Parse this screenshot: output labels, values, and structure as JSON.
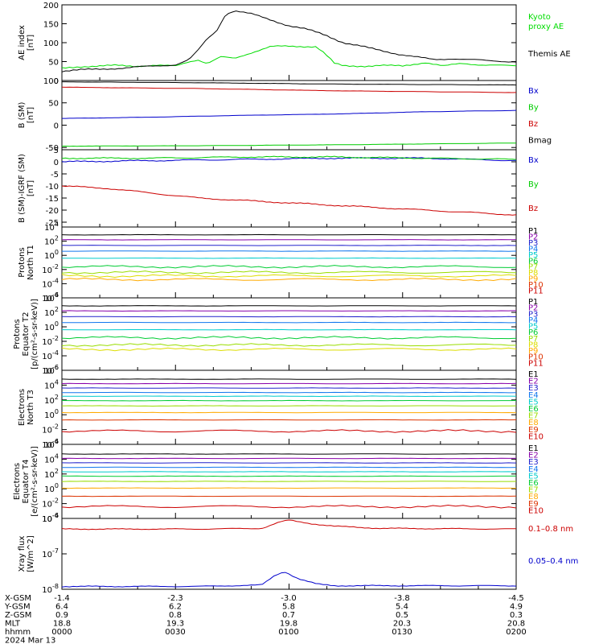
{
  "chart_data": {
    "type": "line",
    "date": "2024 Mar 13",
    "time_range_hhmm": [
      "0000",
      "0200"
    ],
    "panels": [
      {
        "id": "ae",
        "ylabel": "AE index [nT]",
        "ylim": [
          0,
          200
        ],
        "yticks": [
          "0",
          "50",
          "100",
          "150",
          "200"
        ],
        "ytick_values": [
          0,
          50,
          100,
          150,
          200
        ],
        "series": [
          {
            "name": "Kyoto proxy AE",
            "color": "#00dd00",
            "points": [
              [
                0,
                32
              ],
              [
                4,
                37
              ],
              [
                8,
                38
              ],
              [
                12,
                40
              ],
              [
                16,
                38
              ],
              [
                20,
                40
              ],
              [
                25,
                38
              ],
              [
                28,
                50
              ],
              [
                30,
                55
              ],
              [
                32,
                45
              ],
              [
                35,
                62
              ],
              [
                38,
                58
              ],
              [
                42,
                75
              ],
              [
                46,
                90
              ],
              [
                52,
                90
              ],
              [
                56,
                90
              ],
              [
                58,
                70
              ],
              [
                60,
                45
              ],
              [
                62,
                38
              ],
              [
                66,
                38
              ],
              [
                70,
                40
              ],
              [
                75,
                38
              ],
              [
                80,
                48
              ],
              [
                84,
                38
              ],
              [
                88,
                45
              ],
              [
                92,
                42
              ],
              [
                96,
                40
              ],
              [
                100,
                38
              ]
            ]
          },
          {
            "name": "Themis AE",
            "color": "#000000",
            "points": [
              [
                0,
                25
              ],
              [
                4,
                28
              ],
              [
                8,
                30
              ],
              [
                12,
                32
              ],
              [
                16,
                35
              ],
              [
                20,
                38
              ],
              [
                25,
                42
              ],
              [
                28,
                55
              ],
              [
                30,
                80
              ],
              [
                32,
                110
              ],
              [
                34,
                130
              ],
              [
                36,
                175
              ],
              [
                38,
                185
              ],
              [
                42,
                175
              ],
              [
                46,
                160
              ],
              [
                50,
                145
              ],
              [
                54,
                135
              ],
              [
                58,
                120
              ],
              [
                62,
                100
              ],
              [
                66,
                90
              ],
              [
                70,
                80
              ],
              [
                74,
                70
              ],
              [
                78,
                62
              ],
              [
                82,
                55
              ],
              [
                86,
                58
              ],
              [
                90,
                55
              ],
              [
                94,
                52
              ],
              [
                100,
                50
              ]
            ]
          }
        ]
      },
      {
        "id": "b_sm",
        "ylabel": "B (SM) [nT]",
        "ylim": [
          -55,
          100
        ],
        "yticks": [
          "-50",
          "0",
          "50",
          "100"
        ],
        "ytick_values": [
          -50,
          0,
          50,
          100
        ],
        "series": [
          {
            "name": "Bx",
            "color": "#0000cc",
            "points": [
              [
                0,
                15
              ],
              [
                20,
                18
              ],
              [
                40,
                22
              ],
              [
                60,
                25
              ],
              [
                80,
                30
              ],
              [
                100,
                33
              ]
            ]
          },
          {
            "name": "By",
            "color": "#00cc00",
            "points": [
              [
                0,
                -47
              ],
              [
                30,
                -46
              ],
              [
                60,
                -44
              ],
              [
                100,
                -40
              ]
            ]
          },
          {
            "name": "Bz",
            "color": "#cc0000",
            "points": [
              [
                0,
                85
              ],
              [
                30,
                82
              ],
              [
                60,
                77
              ],
              [
                80,
                75
              ],
              [
                100,
                73
              ]
            ]
          },
          {
            "name": "Bmag",
            "color": "#000000",
            "points": [
              [
                0,
                97
              ],
              [
                30,
                95
              ],
              [
                60,
                92
              ],
              [
                100,
                90
              ]
            ]
          }
        ]
      },
      {
        "id": "b_igrf",
        "ylabel": "B (SM)-IGRF (SM) [nT]",
        "ylim": [
          -27,
          5
        ],
        "yticks": [
          "-25",
          "-20",
          "-15",
          "-10",
          "-5",
          "0",
          "5"
        ],
        "ytick_values": [
          -25,
          -20,
          -15,
          -10,
          -5,
          0,
          5
        ],
        "series": [
          {
            "name": "Bx",
            "color": "#0000cc",
            "points": [
              [
                0,
                0
              ],
              [
                20,
                0.5
              ],
              [
                40,
                1
              ],
              [
                60,
                1.5
              ],
              [
                80,
                1.5
              ],
              [
                100,
                0.5
              ]
            ]
          },
          {
            "name": "By",
            "color": "#00cc00",
            "points": [
              [
                0,
                1.5
              ],
              [
                20,
                1.5
              ],
              [
                40,
                2
              ],
              [
                60,
                2
              ],
              [
                80,
                1.5
              ],
              [
                100,
                1
              ]
            ]
          },
          {
            "name": "Bz",
            "color": "#cc0000",
            "points": [
              [
                0,
                -10
              ],
              [
                10,
                -11
              ],
              [
                20,
                -13
              ],
              [
                30,
                -15
              ],
              [
                40,
                -16
              ],
              [
                50,
                -17
              ],
              [
                60,
                -18
              ],
              [
                70,
                -19
              ],
              [
                80,
                -20
              ],
              [
                90,
                -21
              ],
              [
                100,
                -22
              ]
            ]
          }
        ]
      },
      {
        "id": "protons_north",
        "ylabel": "Protons North T1",
        "log": true,
        "ylim_exp": [
          -6,
          4
        ],
        "yticks_exp": [
          -6,
          -4,
          -2,
          0,
          2,
          4
        ],
        "series": [
          {
            "name": "P1",
            "color": "#000000",
            "value_exp": 2.9
          },
          {
            "name": "P2",
            "color": "#8800aa",
            "value_exp": 2.2
          },
          {
            "name": "P3",
            "color": "#2222cc",
            "value_exp": 1.4
          },
          {
            "name": "P4",
            "color": "#1177ee",
            "value_exp": 0.6
          },
          {
            "name": "P5",
            "color": "#00cccc",
            "value_exp": -0.4
          },
          {
            "name": "P6",
            "color": "#00cc33",
            "value_exp": -1.6
          },
          {
            "name": "P7",
            "color": "#99dd00",
            "value_exp": -2.4
          },
          {
            "name": "P8",
            "color": "#dddd00",
            "value_exp": -2.9
          },
          {
            "name": "P9",
            "color": "#ffaa00",
            "value_exp": -3.4
          }
        ],
        "legend": [
          "P1",
          "P2",
          "P3",
          "P4",
          "P5",
          "P6",
          "P7",
          "P8",
          "P9",
          "P10",
          "P11"
        ]
      },
      {
        "id": "protons_equator",
        "ylabel": "Protons Equator T2 [p/(cm²-s-sr-keV)]",
        "log": true,
        "ylim_exp": [
          -6,
          4
        ],
        "yticks_exp": [
          -6,
          -4,
          -2,
          0,
          2,
          4
        ],
        "series": [
          {
            "name": "P1",
            "color": "#000000",
            "value_exp": 2.9
          },
          {
            "name": "P2",
            "color": "#8800aa",
            "value_exp": 2.2
          },
          {
            "name": "P3",
            "color": "#2222cc",
            "value_exp": 1.4
          },
          {
            "name": "P4",
            "color": "#1177ee",
            "value_exp": 0.6
          },
          {
            "name": "P5",
            "color": "#00cccc",
            "value_exp": -0.4
          },
          {
            "name": "P6",
            "color": "#00cc33",
            "value_exp": -1.5
          },
          {
            "name": "P7",
            "color": "#99dd00",
            "value_exp": -2.5
          },
          {
            "name": "P8",
            "color": "#dddd00",
            "value_exp": -3.1
          }
        ],
        "legend": [
          "P1",
          "P2",
          "P3",
          "P4",
          "P5",
          "P6",
          "P7",
          "P8",
          "P9",
          "P10",
          "P11"
        ]
      },
      {
        "id": "electrons_north",
        "ylabel": "Electrons North T3",
        "log": true,
        "ylim_exp": [
          -4,
          6
        ],
        "yticks_exp": [
          -4,
          -2,
          0,
          2,
          4,
          6
        ],
        "series": [
          {
            "name": "E1",
            "color": "#000000",
            "value_exp": 4.8
          },
          {
            "name": "E2",
            "color": "#8800aa",
            "value_exp": 4.2
          },
          {
            "name": "E3",
            "color": "#2222cc",
            "value_exp": 3.6
          },
          {
            "name": "E4",
            "color": "#1177ee",
            "value_exp": 3.0
          },
          {
            "name": "E5",
            "color": "#00cccc",
            "value_exp": 2.5
          },
          {
            "name": "E6",
            "color": "#00cc33",
            "value_exp": 1.9
          },
          {
            "name": "E7",
            "color": "#99dd00",
            "value_exp": 1.2
          },
          {
            "name": "E8",
            "color": "#ffaa00",
            "value_exp": 0.3
          },
          {
            "name": "E9",
            "color": "#dd3300",
            "value_exp": -0.7
          },
          {
            "name": "E10",
            "color": "#cc0000",
            "value_exp": -2.2
          }
        ],
        "legend": [
          "E1",
          "E2",
          "E3",
          "E4",
          "E5",
          "E6",
          "E7",
          "E8",
          "E9",
          "E10"
        ]
      },
      {
        "id": "electrons_equator",
        "ylabel": "Electrons Equator T4 [e/(cm²-s-sr-keV)]",
        "log": true,
        "ylim_exp": [
          -4,
          6
        ],
        "yticks_exp": [
          -4,
          -2,
          0,
          2,
          4,
          6
        ],
        "series": [
          {
            "name": "E1",
            "color": "#000000",
            "value_exp": 4.7
          },
          {
            "name": "E2",
            "color": "#8800aa",
            "value_exp": 4.1
          },
          {
            "name": "E3",
            "color": "#2222cc",
            "value_exp": 3.5
          },
          {
            "name": "E4",
            "color": "#1177ee",
            "value_exp": 2.9
          },
          {
            "name": "E5",
            "color": "#00cccc",
            "value_exp": 2.3
          },
          {
            "name": "E6",
            "color": "#00cc33",
            "value_exp": 1.7
          },
          {
            "name": "E7",
            "color": "#99dd00",
            "value_exp": 1.0
          },
          {
            "name": "E8",
            "color": "#ffaa00",
            "value_exp": 0.1
          },
          {
            "name": "E9",
            "color": "#dd3300",
            "value_exp": -1.0
          },
          {
            "name": "E10",
            "color": "#cc0000",
            "value_exp": -2.4
          }
        ],
        "legend": [
          "E1",
          "E2",
          "E3",
          "E4",
          "E5",
          "E6",
          "E7",
          "E8",
          "E9",
          "E10"
        ]
      },
      {
        "id": "xray",
        "ylabel": "Xray flux [W/m^2]",
        "log": true,
        "ylim_exp": [
          -8,
          -6
        ],
        "yticks_exp": [
          -8,
          -7,
          -6
        ],
        "series": [
          {
            "name": "0.1–0.8 nm",
            "color": "#cc0000",
            "points": [
              [
                0,
                -6.3
              ],
              [
                30,
                -6.3
              ],
              [
                44,
                -6.28
              ],
              [
                48,
                -6.1
              ],
              [
                50,
                -6.05
              ],
              [
                55,
                -6.15
              ],
              [
                60,
                -6.22
              ],
              [
                70,
                -6.28
              ],
              [
                100,
                -6.3
              ]
            ]
          },
          {
            "name": "0.05–0.4 nm",
            "color": "#0000cc",
            "points": [
              [
                0,
                -7.92
              ],
              [
                30,
                -7.92
              ],
              [
                44,
                -7.88
              ],
              [
                47,
                -7.6
              ],
              [
                49,
                -7.5
              ],
              [
                52,
                -7.7
              ],
              [
                56,
                -7.85
              ],
              [
                60,
                -7.9
              ],
              [
                100,
                -7.9
              ]
            ]
          }
        ]
      }
    ]
  },
  "footer": {
    "rows": [
      {
        "label": "X-GSM",
        "values": [
          "-1.4",
          "-2.3",
          "-3.0",
          "-3.8",
          "-4.5"
        ]
      },
      {
        "label": "Y-GSM",
        "values": [
          "6.4",
          "6.2",
          "5.8",
          "5.4",
          "4.9"
        ]
      },
      {
        "label": "Z-GSM",
        "values": [
          "0.9",
          "0.8",
          "0.7",
          "0.5",
          "0.3"
        ]
      },
      {
        "label": "MLT",
        "values": [
          "18.8",
          "19.3",
          "19.8",
          "20.3",
          "20.8"
        ]
      },
      {
        "label": "hhmm",
        "values": [
          "0000",
          "0030",
          "0100",
          "0130",
          "0200"
        ]
      }
    ],
    "date": "2024 Mar 13"
  }
}
